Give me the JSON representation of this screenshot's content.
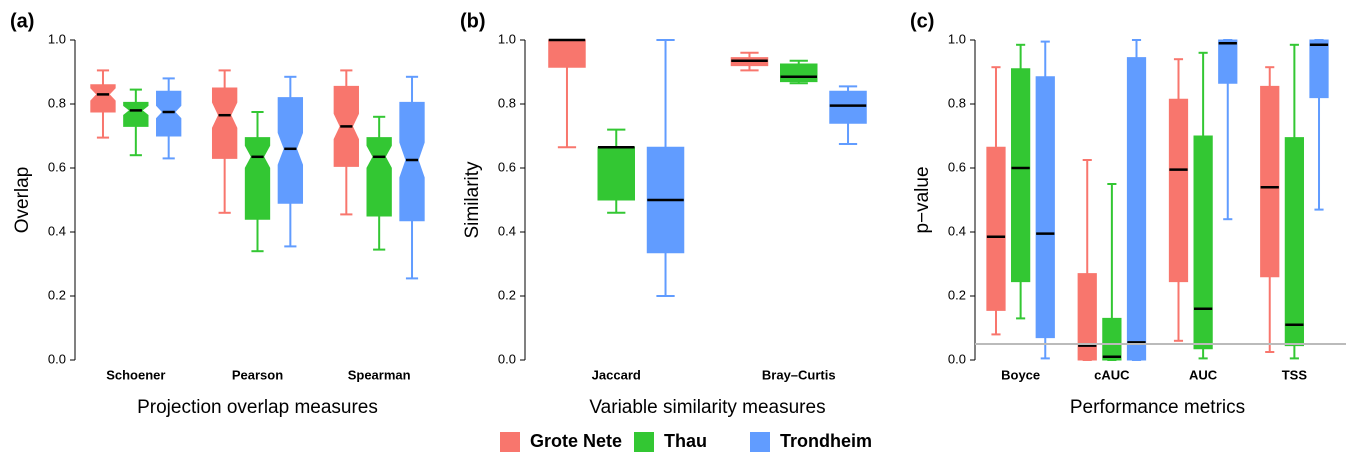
{
  "legend": {
    "series": [
      {
        "name": "Grote Nete",
        "color": "#f8766d"
      },
      {
        "name": "Thau",
        "color": "#33c733"
      },
      {
        "name": "Trondheim",
        "color": "#619cff"
      }
    ]
  },
  "chart_data": [
    {
      "type": "boxplot",
      "panel_label": "(a)",
      "y_label": "Overlap",
      "x_label": "Projection overlap measures",
      "notched": true,
      "categories": [
        "Schoener",
        "Pearson",
        "Spearman"
      ],
      "ylim": [
        0,
        1
      ],
      "yticks": [
        {
          "value": 0,
          "label": "0.0"
        },
        0.2,
        0.4,
        0.6,
        0.8,
        {
          "value": 1,
          "label": "1.0"
        }
      ],
      "series": [
        {
          "boxes": [
            {
              "low": 0.695,
              "q1": 0.775,
              "median": 0.83,
              "q3": 0.86,
              "high": 0.905,
              "notch_low": 0.81,
              "notch_high": 0.85
            },
            {
              "low": 0.46,
              "q1": 0.63,
              "median": 0.765,
              "q3": 0.85,
              "high": 0.905,
              "notch_low": 0.725,
              "notch_high": 0.805
            },
            {
              "low": 0.455,
              "q1": 0.605,
              "median": 0.73,
              "q3": 0.855,
              "high": 0.905,
              "notch_low": 0.69,
              "notch_high": 0.77
            }
          ]
        },
        {
          "boxes": [
            {
              "low": 0.64,
              "q1": 0.73,
              "median": 0.78,
              "q3": 0.805,
              "high": 0.845,
              "notch_low": 0.765,
              "notch_high": 0.795
            },
            {
              "low": 0.34,
              "q1": 0.44,
              "median": 0.635,
              "q3": 0.695,
              "high": 0.775,
              "notch_low": 0.6,
              "notch_high": 0.67
            },
            {
              "low": 0.345,
              "q1": 0.45,
              "median": 0.635,
              "q3": 0.695,
              "high": 0.76,
              "notch_low": 0.6,
              "notch_high": 0.67
            }
          ]
        },
        {
          "boxes": [
            {
              "low": 0.63,
              "q1": 0.7,
              "median": 0.775,
              "q3": 0.84,
              "high": 0.88,
              "notch_low": 0.755,
              "notch_high": 0.795
            },
            {
              "low": 0.355,
              "q1": 0.49,
              "median": 0.66,
              "q3": 0.82,
              "high": 0.885,
              "notch_low": 0.61,
              "notch_high": 0.71
            },
            {
              "low": 0.255,
              "q1": 0.435,
              "median": 0.625,
              "q3": 0.805,
              "high": 0.885,
              "notch_low": 0.57,
              "notch_high": 0.68
            }
          ]
        }
      ]
    },
    {
      "type": "boxplot",
      "panel_label": "(b)",
      "y_label": "Similarity",
      "x_label": "Variable similarity measures",
      "notched": false,
      "categories": [
        "Jaccard",
        "Bray–Curtis"
      ],
      "ylim": [
        0,
        1
      ],
      "yticks": [
        {
          "value": 0,
          "label": "0.0"
        },
        0.2,
        0.4,
        0.6,
        0.8,
        {
          "value": 1,
          "label": "1.0"
        }
      ],
      "series": [
        {
          "boxes": [
            {
              "low": 0.665,
              "q1": 0.915,
              "median": 1.0,
              "q3": 1.0,
              "high": 1.0
            },
            {
              "low": 0.905,
              "q1": 0.92,
              "median": 0.935,
              "q3": 0.945,
              "high": 0.96
            }
          ]
        },
        {
          "boxes": [
            {
              "low": 0.46,
              "q1": 0.5,
              "median": 0.665,
              "q3": 0.665,
              "high": 0.72
            },
            {
              "low": 0.865,
              "q1": 0.87,
              "median": 0.885,
              "q3": 0.925,
              "high": 0.935
            }
          ]
        },
        {
          "boxes": [
            {
              "low": 0.2,
              "q1": 0.335,
              "median": 0.5,
              "q3": 0.665,
              "high": 1.0
            },
            {
              "low": 0.675,
              "q1": 0.74,
              "median": 0.795,
              "q3": 0.84,
              "high": 0.855
            }
          ]
        }
      ]
    },
    {
      "type": "boxplot",
      "panel_label": "(c)",
      "y_label": "p−value",
      "x_label": "Performance metrics",
      "notched": false,
      "hline": 0.05,
      "categories": [
        "Boyce",
        "cAUC",
        "AUC",
        "TSS"
      ],
      "ylim": [
        0,
        1
      ],
      "yticks": [
        {
          "value": 0,
          "label": "0.0"
        },
        0.2,
        0.4,
        0.6,
        0.8,
        {
          "value": 1,
          "label": "1.0"
        }
      ],
      "series": [
        {
          "boxes": [
            {
              "low": 0.08,
              "q1": 0.155,
              "median": 0.385,
              "q3": 0.665,
              "high": 0.915
            },
            {
              "low": 0,
              "q1": 0,
              "median": 0.045,
              "q3": 0.27,
              "high": 0.625
            },
            {
              "low": 0.06,
              "q1": 0.245,
              "median": 0.595,
              "q3": 0.815,
              "high": 0.94
            },
            {
              "low": 0.025,
              "q1": 0.26,
              "median": 0.54,
              "q3": 0.855,
              "high": 0.915
            }
          ]
        },
        {
          "boxes": [
            {
              "low": 0.13,
              "q1": 0.245,
              "median": 0.6,
              "q3": 0.91,
              "high": 0.985
            },
            {
              "low": 0,
              "q1": 0,
              "median": 0.01,
              "q3": 0.13,
              "high": 0.55
            },
            {
              "low": 0.005,
              "q1": 0.035,
              "median": 0.16,
              "q3": 0.7,
              "high": 0.96
            },
            {
              "low": 0.005,
              "q1": 0.045,
              "median": 0.11,
              "q3": 0.695,
              "high": 0.985
            }
          ]
        },
        {
          "boxes": [
            {
              "low": 0.005,
              "q1": 0.07,
              "median": 0.395,
              "q3": 0.885,
              "high": 0.995
            },
            {
              "low": 0,
              "q1": 0,
              "median": 0.055,
              "q3": 0.945,
              "high": 1.0
            },
            {
              "low": 0.44,
              "q1": 0.865,
              "median": 0.99,
              "q3": 1.0,
              "high": 1.0
            },
            {
              "low": 0.47,
              "q1": 0.82,
              "median": 0.985,
              "q3": 1.0,
              "high": 1.0
            }
          ]
        }
      ]
    }
  ]
}
